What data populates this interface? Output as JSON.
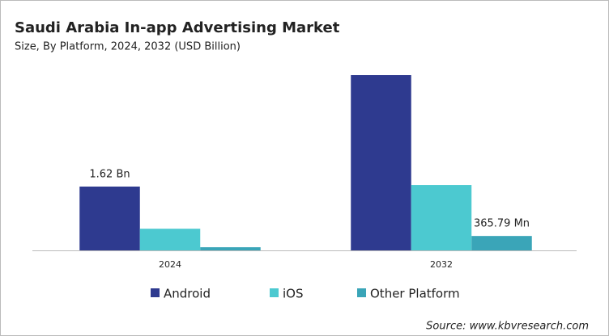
{
  "chart_data": {
    "type": "bar",
    "title": "Saudi Arabia In-app Advertising Market",
    "subtitle": "Size, By Platform, 2024, 2032 (USD Billion)",
    "categories": [
      "2024",
      "2032"
    ],
    "series": [
      {
        "name": "Android",
        "color": "#2e3a8f",
        "values": [
          1.62,
          4.45
        ],
        "value_labels": [
          "1.62 Bn",
          null
        ]
      },
      {
        "name": "iOS",
        "color": "#4cc9d0",
        "values": [
          0.55,
          1.66
        ]
      },
      {
        "name": "Other Platform",
        "color": "#3aa5b8",
        "values": [
          0.08,
          0.36579
        ],
        "value_labels": [
          null,
          "365.79 Mn"
        ]
      }
    ],
    "legend": "bottom",
    "source": "Source: www.kbvresearch.com"
  }
}
